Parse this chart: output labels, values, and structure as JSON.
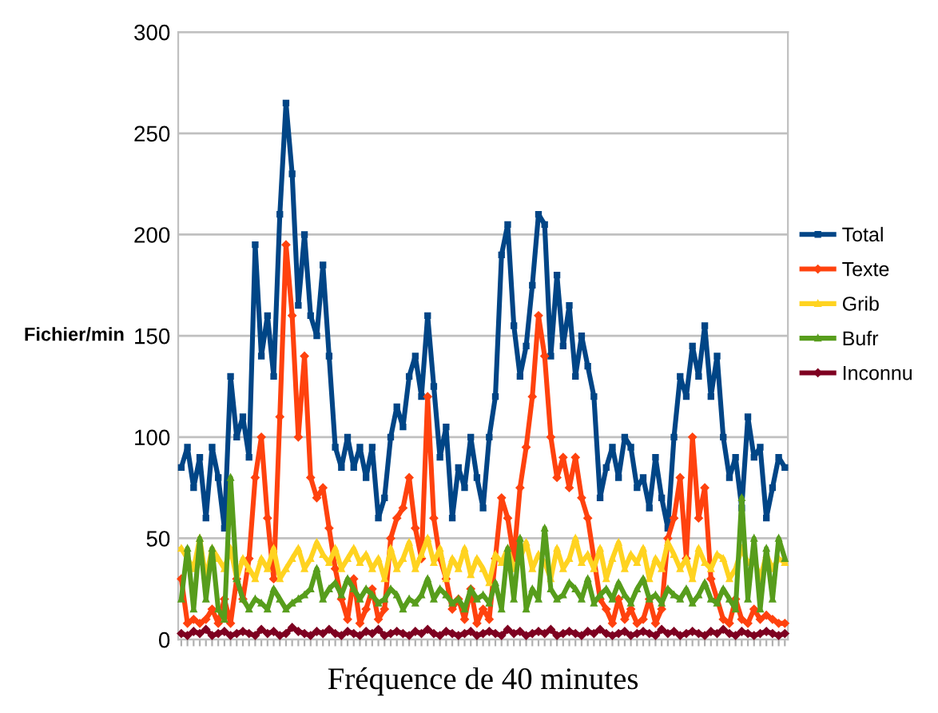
{
  "chart_data": {
    "type": "line",
    "xlabel": "Fréquence de 40 minutes",
    "ylabel": "Fichier/min",
    "categories": [
      null,
      null,
      null,
      null,
      null,
      null,
      null,
      null,
      null,
      null,
      null,
      null,
      null,
      null,
      null,
      null,
      null,
      null,
      null,
      null,
      null,
      null,
      null,
      null,
      null,
      null,
      null,
      null,
      null,
      null,
      null,
      null,
      null,
      null,
      null,
      null,
      null,
      null,
      null,
      null,
      null,
      null,
      null,
      null,
      null,
      null,
      null,
      null,
      null,
      null,
      null,
      null,
      null,
      null,
      null,
      null,
      null,
      null,
      null,
      null,
      null,
      null,
      null,
      null,
      null,
      null,
      null,
      null,
      null,
      null,
      null,
      null,
      null,
      null,
      null,
      null,
      null,
      null,
      null,
      null,
      null,
      null,
      null,
      null,
      null,
      null,
      null,
      null,
      null,
      null,
      null,
      null,
      null,
      null,
      null,
      null,
      null,
      null,
      null
    ],
    "series": [
      {
        "name": "Total",
        "color": "#004586",
        "marker": "square",
        "values": [
          85,
          95,
          75,
          90,
          60,
          95,
          80,
          55,
          130,
          100,
          110,
          90,
          195,
          140,
          160,
          130,
          210,
          265,
          230,
          165,
          200,
          160,
          150,
          185,
          140,
          95,
          85,
          100,
          85,
          95,
          80,
          95,
          60,
          70,
          100,
          115,
          105,
          130,
          140,
          120,
          160,
          125,
          90,
          105,
          60,
          85,
          75,
          100,
          80,
          65,
          100,
          120,
          190,
          205,
          155,
          130,
          145,
          175,
          210,
          205,
          140,
          180,
          145,
          165,
          130,
          150,
          135,
          120,
          70,
          85,
          95,
          80,
          100,
          95,
          75,
          80,
          65,
          90,
          70,
          55,
          100,
          130,
          120,
          145,
          130,
          155,
          120,
          140,
          100,
          80,
          90,
          65,
          110,
          90,
          95,
          60,
          75,
          90,
          85
        ]
      },
      {
        "name": "Texte",
        "color": "#ff420e",
        "marker": "diamond",
        "values": [
          30,
          8,
          10,
          8,
          10,
          15,
          8,
          20,
          8,
          30,
          20,
          40,
          80,
          100,
          60,
          30,
          110,
          195,
          160,
          100,
          140,
          80,
          70,
          75,
          55,
          35,
          20,
          10,
          30,
          8,
          15,
          25,
          10,
          15,
          50,
          60,
          65,
          80,
          55,
          40,
          120,
          60,
          40,
          30,
          15,
          20,
          10,
          25,
          8,
          15,
          10,
          40,
          70,
          60,
          40,
          75,
          95,
          120,
          160,
          140,
          100,
          80,
          90,
          75,
          90,
          70,
          60,
          40,
          20,
          15,
          8,
          20,
          10,
          15,
          8,
          10,
          20,
          8,
          15,
          50,
          60,
          80,
          40,
          100,
          60,
          75,
          30,
          20,
          10,
          8,
          20,
          10,
          8,
          15,
          10,
          12,
          10,
          8,
          8
        ]
      },
      {
        "name": "Grib",
        "color": "#ffd320",
        "marker": "triangle",
        "values": [
          45,
          40,
          35,
          50,
          30,
          45,
          40,
          35,
          45,
          30,
          40,
          35,
          30,
          40,
          35,
          45,
          30,
          35,
          40,
          45,
          35,
          40,
          48,
          42,
          38,
          45,
          35,
          40,
          45,
          38,
          42,
          35,
          40,
          30,
          45,
          35,
          40,
          48,
          35,
          42,
          50,
          38,
          45,
          30,
          40,
          35,
          45,
          32,
          40,
          35,
          28,
          42,
          38,
          45,
          35,
          40,
          48,
          35,
          42,
          38,
          30,
          45,
          35,
          40,
          50,
          38,
          42,
          35,
          45,
          30,
          40,
          48,
          35,
          42,
          38,
          45,
          30,
          40,
          35,
          48,
          42,
          35,
          40,
          30,
          45,
          38,
          35,
          42,
          40,
          30,
          35,
          45,
          38,
          40,
          30,
          42,
          35,
          40,
          38
        ]
      },
      {
        "name": "Bufr",
        "color": "#579d1c",
        "marker": "triangle",
        "values": [
          20,
          45,
          15,
          50,
          20,
          45,
          15,
          10,
          80,
          30,
          20,
          15,
          20,
          18,
          15,
          25,
          20,
          15,
          18,
          20,
          22,
          25,
          35,
          20,
          25,
          28,
          22,
          30,
          25,
          20,
          25,
          22,
          18,
          20,
          25,
          22,
          15,
          20,
          18,
          22,
          30,
          20,
          25,
          22,
          18,
          20,
          15,
          25,
          20,
          22,
          18,
          28,
          15,
          45,
          20,
          50,
          15,
          25,
          20,
          55,
          25,
          20,
          22,
          28,
          25,
          20,
          30,
          18,
          22,
          25,
          20,
          28,
          22,
          18,
          25,
          30,
          20,
          22,
          18,
          25,
          22,
          20,
          25,
          18,
          22,
          28,
          20,
          18,
          25,
          20,
          15,
          70,
          20,
          50,
          15,
          45,
          20,
          50,
          40
        ]
      },
      {
        "name": "Inconnu",
        "color": "#7e0021",
        "marker": "diamond",
        "values": [
          3,
          2,
          4,
          3,
          5,
          2,
          3,
          4,
          2,
          3,
          4,
          3,
          2,
          5,
          3,
          4,
          2,
          3,
          6,
          4,
          3,
          2,
          4,
          3,
          5,
          3,
          2,
          4,
          3,
          2,
          4,
          3,
          5,
          2,
          3,
          4,
          3,
          2,
          4,
          3,
          5,
          3,
          2,
          4,
          3,
          2,
          3,
          4,
          2,
          3,
          4,
          3,
          2,
          5,
          3,
          4,
          2,
          3,
          4,
          3,
          5,
          2,
          3,
          4,
          3,
          2,
          4,
          3,
          5,
          3,
          2,
          3,
          4,
          2,
          3,
          4,
          3,
          2,
          5,
          3,
          4,
          2,
          3,
          4,
          3,
          2,
          4,
          3,
          5,
          3,
          2,
          4,
          3,
          2,
          3,
          4,
          3,
          2,
          3
        ]
      }
    ],
    "ylim": [
      0,
      300
    ],
    "yticks": [
      0,
      50,
      100,
      150,
      200,
      250,
      300
    ],
    "grid": "y",
    "legend": "right",
    "line_style": "solid"
  }
}
